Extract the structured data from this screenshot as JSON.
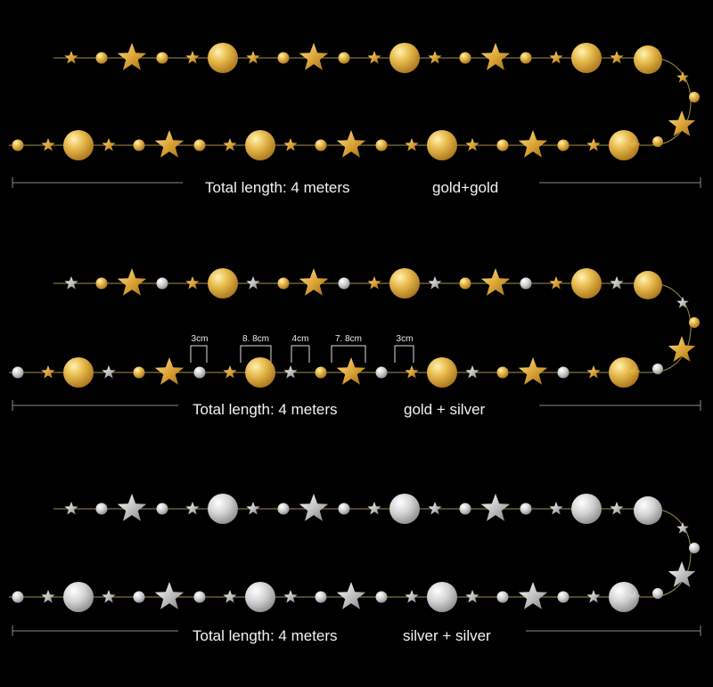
{
  "colors": {
    "background": "#000000",
    "gold": "#d4a534",
    "gold_light": "#f6dd8a",
    "silver": "#b8b8b8",
    "silver_light": "#f2f2f2",
    "string": "#c9b25a",
    "measure_line": "#8a8a8a",
    "text": "#f2f2f2"
  },
  "garlands": [
    {
      "length_label": "Total length: 4 meters",
      "color_label": "gold+gold",
      "scheme": "gold"
    },
    {
      "length_label": "Total length: 4 meters",
      "color_label": "gold + silver",
      "scheme": "mixed"
    },
    {
      "length_label": "Total length: 4 meters",
      "color_label": "silver + silver",
      "scheme": "silver"
    }
  ],
  "dimensions": [
    "3cm",
    "8. 8cm",
    "4cm",
    "7. 8cm",
    "3cm"
  ]
}
